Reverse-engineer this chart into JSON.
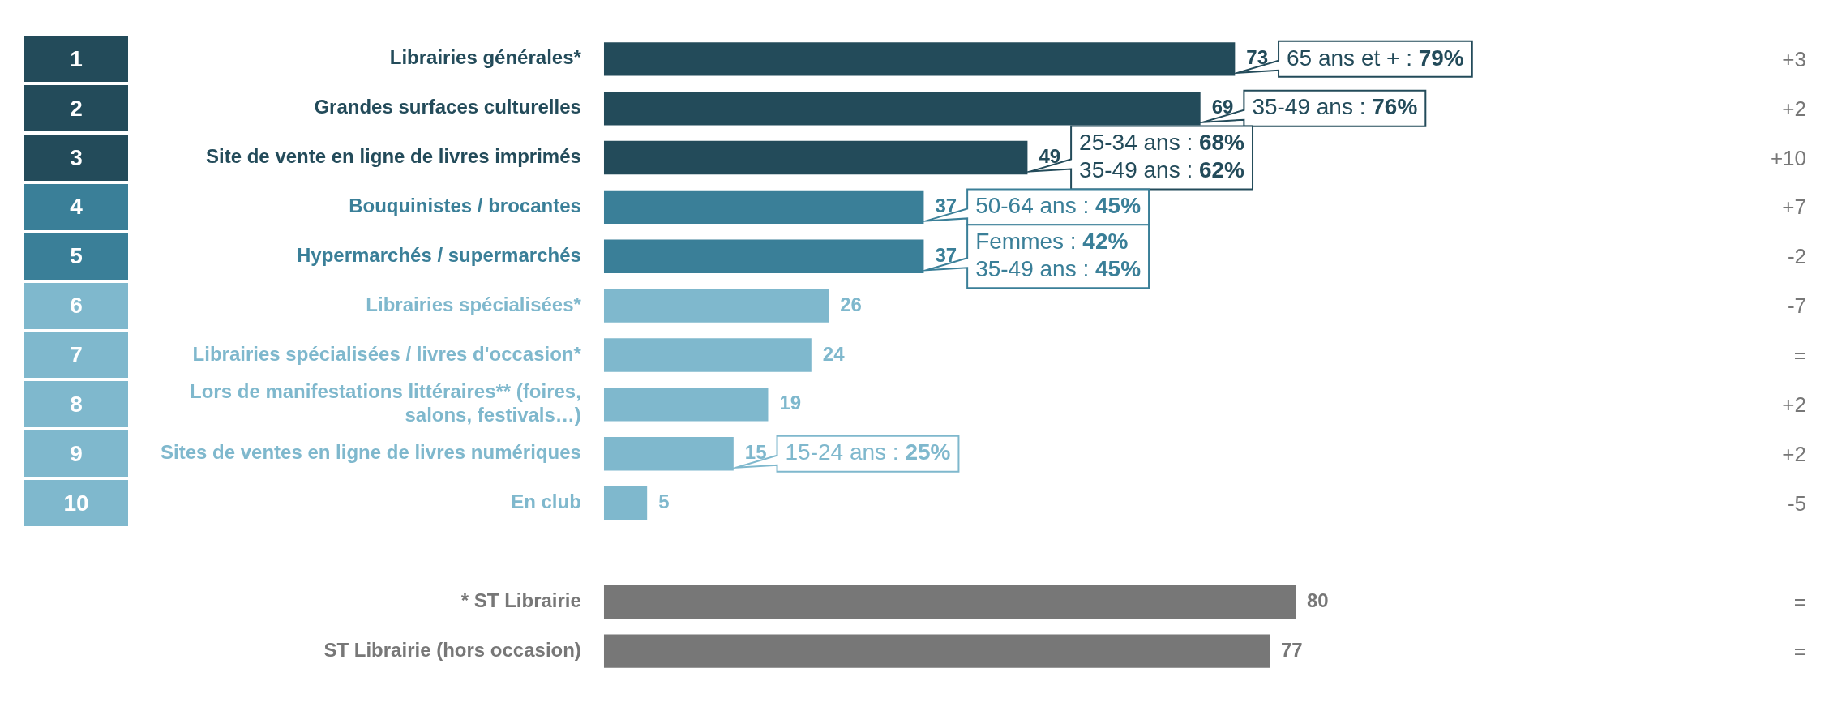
{
  "chart_data": {
    "type": "bar",
    "orientation": "horizontal",
    "categories": [
      "Librairies générales*",
      "Grandes surfaces culturelles",
      "Site de vente en ligne de livres imprimés",
      "Bouquinistes / brocantes",
      "Hypermarchés / supermarchés",
      "Librairies spécialisées*",
      "Librairies spécialisées / livres d'occasion*",
      "Lors de manifestations littéraires** (foires, salons, festivals…)",
      "Sites de ventes en ligne de livres numériques",
      "En club",
      null,
      "* ST Librairie",
      "ST Librairie (hors occasion)"
    ],
    "values": [
      73,
      69,
      49,
      37,
      37,
      26,
      24,
      19,
      15,
      5,
      null,
      80,
      77
    ],
    "colors": [
      "#234b5a",
      "#234b5a",
      "#234b5a",
      "#3a7f98",
      "#3a7f98",
      "#7fb8cd",
      "#7fb8cd",
      "#7fb8cd",
      "#7fb8cd",
      "#7fb8cd",
      null,
      "#777777",
      "#777777"
    ],
    "data_labels": true,
    "grid": false,
    "legend": false,
    "tick_labels": "y",
    "annotations": [
      "1",
      "2",
      "3",
      "4",
      "5",
      "6",
      "7",
      "8",
      "9",
      "10",
      "+3",
      "+2",
      "+10",
      "+7",
      "-2",
      "-7",
      "=",
      "+2",
      "+2",
      "-5",
      "=",
      "=",
      {
        "text": "65 ans et + : 79%",
        "x": 73,
        "y": "Librairies générales*"
      },
      {
        "text": "35-49 ans : 76%",
        "x": 69,
        "y": "Grandes surfaces culturelles"
      },
      {
        "text": "25-34 ans : 68%\n35-49 ans : 62%",
        "x": 49,
        "y": "Site de vente en ligne de livres imprimés"
      },
      {
        "text": "50-64 ans : 45%",
        "x": 37,
        "y": "Bouquinistes / brocantes"
      },
      {
        "text": "Femmes : 42%\n35-49 ans : 45%",
        "x": 37,
        "y": "Hypermarchés / supermarchés"
      },
      {
        "text": "15-24 ans : 25%",
        "x": 15,
        "y": "Sites de ventes en ligne de livres numériques"
      }
    ]
  }
}
